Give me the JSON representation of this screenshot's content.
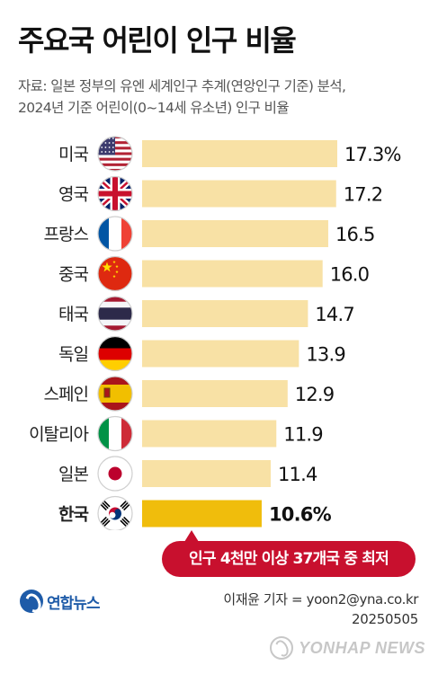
{
  "title": "주요국 어린이 인구 비율",
  "subtitle_line1": "자료: 일본 정부의 유엔 세계인구 추계(연앙인구 기준) 분석,",
  "subtitle_line2": "2024년 기준 어린이(0~14세 유소년) 인구 비율",
  "callout": "인구 4천만 이상 37개국 중 최저",
  "logo": "연합뉴스",
  "credit": "이재윤 기자 = yoon2@yna.co.kr",
  "date": "20250505",
  "watermark": "YONHAP NEWS",
  "colors": {
    "bar": "#f8e1a5",
    "highlight_bar": "#f0bd0c",
    "callout": "#c8102e"
  },
  "chart_data": {
    "type": "bar",
    "orientation": "horizontal",
    "categories": [
      "미국",
      "영국",
      "프랑스",
      "중국",
      "태국",
      "독일",
      "스페인",
      "이탈리아",
      "일본",
      "한국"
    ],
    "values": [
      17.3,
      17.2,
      16.5,
      16.0,
      14.7,
      13.9,
      12.9,
      11.9,
      11.4,
      10.6
    ],
    "value_labels": [
      "17.3%",
      "17.2",
      "16.5",
      "16.0",
      "14.7",
      "13.9",
      "12.9",
      "11.9",
      "11.4",
      "10.6%"
    ],
    "flags": [
      "us-flag-icon",
      "uk-flag-icon",
      "france-flag-icon",
      "china-flag-icon",
      "thailand-flag-icon",
      "germany-flag-icon",
      "spain-flag-icon",
      "italy-flag-icon",
      "japan-flag-icon",
      "korea-flag-icon"
    ],
    "highlight": "한국",
    "unit": "%"
  }
}
